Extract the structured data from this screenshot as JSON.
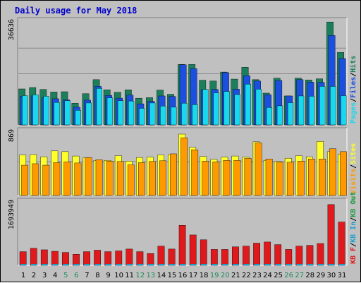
{
  "title": "Daily usage for May 2018",
  "colors": {
    "background": "#c0c0c0",
    "plot_bg": "#c0c0c0",
    "hits": "#1b7f5b",
    "files": "#1b4fe0",
    "pages": "#18d8ee",
    "visits": "#ffff2a",
    "sites": "#ff9900",
    "kbin": "#1a9fd0",
    "kbout": "#1b9a3b",
    "kbf": "#e0191c",
    "weekend_label": "#1b8a5b",
    "weekday_label": "#000000"
  },
  "chart_data": [
    {
      "type": "bar",
      "panel": "hits-files-pages",
      "ymax_label": "36636",
      "ylim": [
        0,
        36636
      ],
      "legend": [
        "Pages",
        "/",
        "Files",
        "/",
        "Hits"
      ],
      "categories": [
        "1",
        "2",
        "3",
        "4",
        "5",
        "6",
        "7",
        "8",
        "9",
        "10",
        "11",
        "12",
        "13",
        "14",
        "15",
        "16",
        "17",
        "18",
        "19",
        "20",
        "21",
        "22",
        "23",
        "24",
        "25",
        "26",
        "27",
        "28",
        "29",
        "30",
        "31"
      ],
      "series": [
        {
          "name": "Hits",
          "values": [
            12800,
            13300,
            12600,
            11700,
            11800,
            7700,
            11100,
            16100,
            12500,
            11600,
            12500,
            9500,
            9700,
            12400,
            10900,
            21500,
            21500,
            15900,
            15600,
            18800,
            16300,
            20500,
            16100,
            11300,
            16600,
            10300,
            16600,
            16000,
            16400,
            36600,
            25800
          ]
        },
        {
          "name": "Files",
          "values": [
            10200,
            10300,
            9600,
            9300,
            8900,
            6300,
            8800,
            13700,
            10500,
            9500,
            10600,
            7500,
            8400,
            10300,
            10100,
            21400,
            20000,
            12500,
            12600,
            18600,
            12700,
            17500,
            15600,
            10700,
            15800,
            10300,
            16100,
            15200,
            15100,
            31800,
            23600
          ]
        },
        {
          "name": "Pages",
          "values": [
            10400,
            10700,
            10200,
            8000,
            8600,
            5200,
            7800,
            13000,
            9600,
            8600,
            8500,
            5900,
            7800,
            6700,
            6300,
            7700,
            7200,
            12600,
            11400,
            11900,
            10800,
            14500,
            12700,
            6200,
            6800,
            7900,
            10300,
            10200,
            13700,
            13700,
            10400
          ]
        }
      ]
    },
    {
      "type": "bar",
      "panel": "visits-sites",
      "ymax_label": "869",
      "ylim": [
        0,
        869
      ],
      "legend": [
        "Visits",
        "/",
        "Sites"
      ],
      "categories": [
        "1",
        "2",
        "3",
        "4",
        "5",
        "6",
        "7",
        "8",
        "9",
        "10",
        "11",
        "12",
        "13",
        "14",
        "15",
        "16",
        "17",
        "18",
        "19",
        "20",
        "21",
        "22",
        "23",
        "24",
        "25",
        "26",
        "27",
        "28",
        "29",
        "30",
        "31"
      ],
      "series": [
        {
          "name": "Visits",
          "values": [
            555,
            560,
            530,
            610,
            600,
            540,
            520,
            480,
            480,
            545,
            470,
            520,
            525,
            555,
            560,
            840,
            660,
            535,
            495,
            525,
            540,
            525,
            735,
            480,
            465,
            510,
            545,
            530,
            740,
            600,
            565
          ]
        },
        {
          "name": "Sites",
          "values": [
            415,
            435,
            415,
            450,
            460,
            445,
            520,
            490,
            470,
            465,
            420,
            450,
            465,
            475,
            570,
            790,
            625,
            470,
            460,
            480,
            480,
            510,
            720,
            500,
            455,
            455,
            470,
            500,
            500,
            640,
            600
          ]
        }
      ]
    },
    {
      "type": "bar",
      "panel": "kb",
      "ymax_label": "1693949",
      "ylim": [
        0,
        1693949
      ],
      "legend": [
        "KB F",
        "/",
        "KB In",
        "/",
        "KB Out"
      ],
      "categories": [
        "1",
        "2",
        "3",
        "4",
        "5",
        "6",
        "7",
        "8",
        "9",
        "10",
        "11",
        "12",
        "13",
        "14",
        "15",
        "16",
        "17",
        "18",
        "19",
        "20",
        "21",
        "22",
        "23",
        "24",
        "25",
        "26",
        "27",
        "28",
        "29",
        "30",
        "31"
      ],
      "series": [
        {
          "name": "KB F",
          "values": [
            370000,
            460000,
            420000,
            380000,
            350000,
            300000,
            370000,
            410000,
            370000,
            390000,
            440000,
            370000,
            320000,
            520000,
            440000,
            1080000,
            820000,
            690000,
            430000,
            430000,
            500000,
            520000,
            600000,
            630000,
            560000,
            430000,
            520000,
            540000,
            590000,
            1640000,
            1170000
          ]
        }
      ]
    }
  ]
}
